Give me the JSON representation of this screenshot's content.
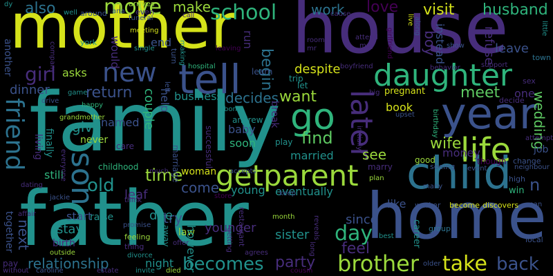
{
  "palette": {
    "background": "#000000",
    "yellow": "#d5e21a",
    "lime": "#9bd93c",
    "green": "#5ec962",
    "emerald": "#2fb47c",
    "teal": "#21918c",
    "cyan_blue": "#2c728e",
    "blue": "#3b528b",
    "indigo": "#472d7b",
    "purple": "#440154"
  },
  "words": [
    {
      "text": "family",
      "color": "teal"
    },
    {
      "text": "mother",
      "color": "yellow"
    },
    {
      "text": "house",
      "color": "indigo"
    },
    {
      "text": "father",
      "color": "teal"
    },
    {
      "text": "home",
      "color": "blue"
    },
    {
      "text": "child",
      "color": "cyan_blue"
    },
    {
      "text": "year",
      "color": "blue"
    },
    {
      "text": "daughter",
      "color": "emerald"
    },
    {
      "text": "tell",
      "color": "blue"
    },
    {
      "text": "life",
      "color": "lime"
    },
    {
      "text": "getparent",
      "color": "lime"
    },
    {
      "text": "friend",
      "color": "cyan_blue"
    },
    {
      "text": "later",
      "color": "indigo"
    },
    {
      "text": "go",
      "color": "emerald"
    },
    {
      "text": "son",
      "color": "cyan_blue"
    },
    {
      "text": "new",
      "color": "blue"
    },
    {
      "text": "move",
      "color": "lime"
    },
    {
      "text": "school",
      "color": "emerald"
    },
    {
      "text": "brother",
      "color": "lime"
    },
    {
      "text": "take",
      "color": "yellow"
    },
    {
      "text": "old",
      "color": "teal"
    },
    {
      "text": "back",
      "color": "blue"
    },
    {
      "text": "time",
      "color": "lime"
    },
    {
      "text": "day",
      "color": "emerald"
    },
    {
      "text": "work",
      "color": "cyan_blue"
    },
    {
      "text": "wife",
      "color": "lime"
    },
    {
      "text": "becomes",
      "color": "teal"
    },
    {
      "text": "find",
      "color": "green"
    },
    {
      "text": "relationship",
      "color": "cyan_blue"
    },
    {
      "text": "girl",
      "color": "indigo"
    },
    {
      "text": "husband",
      "color": "emerald"
    },
    {
      "text": "love",
      "color": "purple"
    },
    {
      "text": "visit",
      "color": "yellow"
    },
    {
      "text": "make",
      "color": "lime"
    },
    {
      "text": "also",
      "color": "cyan_blue"
    },
    {
      "text": "return",
      "color": "blue"
    },
    {
      "text": "meet",
      "color": "green"
    },
    {
      "text": "party",
      "color": "indigo"
    },
    {
      "text": "despite",
      "color": "yellow"
    },
    {
      "text": "begin",
      "color": "cyan_blue"
    },
    {
      "text": "decides",
      "color": "cyan_blue"
    },
    {
      "text": "want",
      "color": "lime"
    },
    {
      "text": "give",
      "color": "teal"
    },
    {
      "text": "see",
      "color": "lime"
    },
    {
      "text": "come",
      "color": "blue"
    },
    {
      "text": "wedding",
      "color": "green"
    },
    {
      "text": "feel",
      "color": "indigo"
    },
    {
      "text": "eventually",
      "color": "teal"
    },
    {
      "text": "younger",
      "color": "indigo"
    },
    {
      "text": "since",
      "color": "blue"
    },
    {
      "text": "sister",
      "color": "teal"
    },
    {
      "text": "leave",
      "color": "blue"
    },
    {
      "text": "dinner",
      "color": "blue"
    },
    {
      "text": "business",
      "color": "teal"
    },
    {
      "text": "book",
      "color": "yellow"
    },
    {
      "text": "named",
      "color": "blue"
    },
    {
      "text": "boy",
      "color": "indigo"
    },
    {
      "text": "asks",
      "color": "lime"
    },
    {
      "text": "next",
      "color": "blue"
    },
    {
      "text": "still",
      "color": "emerald"
    },
    {
      "text": "start",
      "color": "blue"
    },
    {
      "text": "stay",
      "color": "teal"
    },
    {
      "text": "night",
      "color": "teal"
    },
    {
      "text": "soon",
      "color": "emerald"
    },
    {
      "text": "married",
      "color": "teal"
    },
    {
      "text": "baby",
      "color": "blue"
    },
    {
      "text": "woman",
      "color": "yellow"
    },
    {
      "text": "young",
      "color": "teal"
    },
    {
      "text": "couple",
      "color": "emerald"
    },
    {
      "text": "help",
      "color": "blue"
    },
    {
      "text": "never",
      "color": "lime"
    },
    {
      "text": "refuse",
      "color": "indigo"
    },
    {
      "text": "instead",
      "color": "blue"
    },
    {
      "text": "run",
      "color": "indigo"
    },
    {
      "text": "would",
      "color": "indigo"
    },
    {
      "text": "end",
      "color": "blue"
    },
    {
      "text": "another",
      "color": "blue"
    },
    {
      "text": "together",
      "color": "blue"
    },
    {
      "text": "try",
      "color": "blue"
    },
    {
      "text": "due",
      "color": "teal"
    },
    {
      "text": "law",
      "color": "lime"
    },
    {
      "text": "money",
      "color": "indigo"
    },
    {
      "text": "one",
      "color": "indigo"
    },
    {
      "text": "like",
      "color": "blue"
    },
    {
      "text": "leaf",
      "color": "indigo"
    },
    {
      "text": "however",
      "color": "teal"
    },
    {
      "text": "finally",
      "color": "teal"
    },
    {
      "text": "living",
      "color": "indigo"
    },
    {
      "text": "break",
      "color": "indigo"
    },
    {
      "text": "job",
      "color": "blue"
    },
    {
      "text": "childhood",
      "color": "emerald"
    },
    {
      "text": "good",
      "color": "lime"
    },
    {
      "text": "pregnant",
      "color": "yellow"
    },
    {
      "text": "raise",
      "color": "teal"
    },
    {
      "text": "birth",
      "color": "indigo"
    },
    {
      "text": "career",
      "color": "teal"
    },
    {
      "text": "marry",
      "color": "indigo"
    },
    {
      "text": "win",
      "color": "emerald"
    },
    {
      "text": "decide",
      "color": "indigo"
    },
    {
      "text": "andrew",
      "color": "teal"
    },
    {
      "text": "trip",
      "color": "teal"
    },
    {
      "text": "let",
      "color": "teal"
    },
    {
      "text": "learn",
      "color": "blue"
    },
    {
      "text": "play",
      "color": "teal"
    },
    {
      "text": "bond",
      "color": "teal"
    },
    {
      "text": "successful",
      "color": "indigo"
    },
    {
      "text": "care",
      "color": "indigo"
    },
    {
      "text": "marriage",
      "color": "blue"
    },
    {
      "text": "away",
      "color": "teal"
    },
    {
      "text": "though",
      "color": "purple"
    },
    {
      "text": "change",
      "color": "blue"
    },
    {
      "text": "high",
      "color": "blue"
    },
    {
      "text": "local",
      "color": "blue"
    },
    {
      "text": "become",
      "color": "yellow"
    },
    {
      "text": "discovers",
      "color": "yellow"
    },
    {
      "text": "group",
      "color": "cyan_blue"
    },
    {
      "text": "town",
      "color": "cyan_blue"
    },
    {
      "text": "sex",
      "color": "indigo"
    },
    {
      "text": "support",
      "color": "indigo"
    },
    {
      "text": "hospital",
      "color": "emerald"
    },
    {
      "text": "restaurant",
      "color": "indigo"
    },
    {
      "text": "month",
      "color": "lime"
    },
    {
      "text": "offer",
      "color": "indigo"
    },
    {
      "text": "feeling",
      "color": "lime"
    },
    {
      "text": "thing",
      "color": "indigo"
    },
    {
      "text": "divorce",
      "color": "teal"
    },
    {
      "text": "outside",
      "color": "lime"
    },
    {
      "text": "pay",
      "color": "indigo"
    },
    {
      "text": "caroline",
      "color": "blue"
    },
    {
      "text": "estate",
      "color": "indigo"
    },
    {
      "text": "invite",
      "color": "teal"
    },
    {
      "text": "died",
      "color": "lime"
    },
    {
      "text": "without",
      "color": "indigo"
    },
    {
      "text": "agrees",
      "color": "indigo"
    },
    {
      "text": "cousin",
      "color": "purple"
    },
    {
      "text": "older",
      "color": "blue"
    },
    {
      "text": "best",
      "color": "teal"
    },
    {
      "text": "seeing",
      "color": "blue"
    },
    {
      "text": "many",
      "color": "blue"
    },
    {
      "text": "worker",
      "color": "blue"
    },
    {
      "text": "event",
      "color": "blue"
    },
    {
      "text": "attempt",
      "color": "indigo"
    },
    {
      "text": "neighbour",
      "color": "blue"
    },
    {
      "text": "behavior",
      "color": "indigo"
    },
    {
      "text": "boyfriend",
      "color": "indigo"
    },
    {
      "text": "meeting",
      "color": "yellow"
    },
    {
      "text": "single",
      "color": "teal"
    },
    {
      "text": "funeral",
      "color": "blue"
    },
    {
      "text": "around",
      "color": "blue"
    },
    {
      "text": "well",
      "color": "teal"
    },
    {
      "text": "ana",
      "color": "blue"
    },
    {
      "text": "even",
      "color": "indigo"
    },
    {
      "text": "arrives",
      "color": "lime"
    },
    {
      "text": "york",
      "color": "teal"
    },
    {
      "text": "call",
      "color": "indigo"
    },
    {
      "text": "making",
      "color": "teal"
    },
    {
      "text": "turn",
      "color": "blue"
    },
    {
      "text": "leaving",
      "color": "purple"
    },
    {
      "text": "room",
      "color": "indigo"
    },
    {
      "text": "mr",
      "color": "indigo"
    },
    {
      "text": "attend",
      "color": "indigo"
    },
    {
      "text": "may",
      "color": "indigo"
    },
    {
      "text": "cause",
      "color": "indigo"
    },
    {
      "text": "live",
      "color": "yellow"
    },
    {
      "text": "along",
      "color": "blue"
    },
    {
      "text": "girlfriend",
      "color": "purple"
    },
    {
      "text": "show",
      "color": "blue"
    },
    {
      "text": "little",
      "color": "teal"
    },
    {
      "text": "dy",
      "color": "teal"
    },
    {
      "text": "company",
      "color": "indigo"
    },
    {
      "text": "game",
      "color": "teal"
    },
    {
      "text": "happy",
      "color": "emerald"
    },
    {
      "text": "grandmother",
      "color": "lime"
    },
    {
      "text": "drive",
      "color": "blue"
    },
    {
      "text": "left",
      "color": "blue"
    },
    {
      "text": "much",
      "color": "indigo"
    },
    {
      "text": "accepts",
      "color": "blue"
    },
    {
      "text": "initially",
      "color": "indigo"
    },
    {
      "text": "upset",
      "color": "blue"
    },
    {
      "text": "big",
      "color": "indigo"
    },
    {
      "text": "birthday",
      "color": "emerald"
    },
    {
      "text": "everyone",
      "color": "indigo"
    },
    {
      "text": "dating",
      "color": "indigo"
    },
    {
      "text": "jackie",
      "color": "blue"
    },
    {
      "text": "affair",
      "color": "indigo"
    },
    {
      "text": "think",
      "color": "indigo"
    },
    {
      "text": "store",
      "color": "purple"
    },
    {
      "text": "keep",
      "color": "blue"
    },
    {
      "text": "plan",
      "color": "lime"
    },
    {
      "text": "reveals",
      "color": "indigo"
    },
    {
      "text": "promise",
      "color": "blue"
    },
    {
      "text": "getting",
      "color": "indigo"
    },
    {
      "text": "long",
      "color": "indigo"
    },
    {
      "text": "man",
      "color": "blue"
    },
    {
      "text": "n",
      "color": "blue"
    }
  ]
}
